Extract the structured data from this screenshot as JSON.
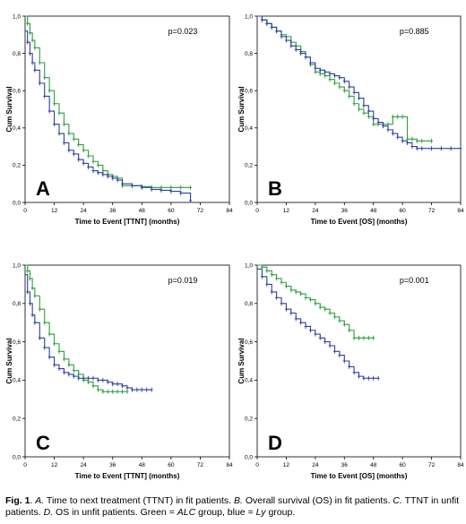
{
  "chart_data": [
    {
      "type": "line",
      "panel_letter": "A",
      "pvalue": "p=0.023",
      "xlabel": "Time to Event [TTNT] (months)",
      "ylabel": "Cum Survival",
      "xlim": [
        0,
        84
      ],
      "ylim": [
        0,
        1
      ],
      "xticks": [
        "0",
        "12",
        "24",
        "36",
        "48",
        "60",
        "72",
        "84"
      ],
      "yticks": [
        "0,0",
        "0,2",
        "0,4",
        "0,6",
        "0,8",
        "1,0"
      ],
      "series": [
        {
          "color": "#2e9e3f",
          "x": [
            0,
            1,
            2,
            3,
            4,
            6,
            8,
            10,
            12,
            14,
            16,
            18,
            20,
            22,
            24,
            26,
            28,
            30,
            32,
            34,
            36,
            38,
            40,
            44,
            48,
            52,
            56,
            60,
            64,
            68
          ],
          "y": [
            1.0,
            0.96,
            0.91,
            0.87,
            0.83,
            0.75,
            0.67,
            0.6,
            0.53,
            0.48,
            0.42,
            0.37,
            0.34,
            0.31,
            0.28,
            0.25,
            0.22,
            0.2,
            0.17,
            0.15,
            0.14,
            0.13,
            0.09,
            0.09,
            0.085,
            0.08,
            0.08,
            0.08,
            0.08,
            0.08
          ]
        },
        {
          "color": "#2f3f9e",
          "x": [
            0,
            1,
            2,
            3,
            4,
            6,
            8,
            10,
            12,
            14,
            16,
            18,
            20,
            22,
            24,
            26,
            28,
            30,
            32,
            34,
            36,
            38,
            40,
            44,
            48,
            52,
            56,
            60,
            64,
            68
          ],
          "y": [
            0.92,
            0.86,
            0.8,
            0.75,
            0.71,
            0.64,
            0.57,
            0.49,
            0.42,
            0.37,
            0.32,
            0.28,
            0.26,
            0.23,
            0.21,
            0.19,
            0.17,
            0.16,
            0.15,
            0.14,
            0.13,
            0.12,
            0.1,
            0.09,
            0.08,
            0.07,
            0.065,
            0.06,
            0.05,
            0.01
          ]
        }
      ]
    },
    {
      "type": "line",
      "panel_letter": "B",
      "pvalue": "p=0.885",
      "xlabel": "Time to Event [OS] (months)",
      "ylabel": "Cum Survival",
      "xlim": [
        0,
        84
      ],
      "ylim": [
        0,
        1
      ],
      "xticks": [
        "0",
        "12",
        "24",
        "36",
        "48",
        "60",
        "72",
        "84"
      ],
      "yticks": [
        "0,0",
        "0,2",
        "0,4",
        "0,6",
        "0,8",
        "1,0"
      ],
      "series": [
        {
          "color": "#2e9e3f",
          "x": [
            0,
            2,
            4,
            6,
            8,
            10,
            12,
            14,
            16,
            18,
            20,
            22,
            24,
            26,
            28,
            30,
            32,
            34,
            36,
            38,
            40,
            42,
            44,
            46,
            48,
            50,
            52,
            54,
            56,
            58,
            60,
            62,
            64,
            66,
            68,
            72
          ],
          "y": [
            1.0,
            0.98,
            0.96,
            0.94,
            0.92,
            0.9,
            0.89,
            0.86,
            0.84,
            0.81,
            0.78,
            0.74,
            0.7,
            0.69,
            0.68,
            0.66,
            0.64,
            0.62,
            0.6,
            0.57,
            0.53,
            0.5,
            0.48,
            0.46,
            0.42,
            0.42,
            0.42,
            0.42,
            0.46,
            0.46,
            0.46,
            0.34,
            0.34,
            0.33,
            0.33,
            0.33
          ]
        },
        {
          "color": "#2f3f9e",
          "x": [
            0,
            2,
            4,
            6,
            8,
            10,
            12,
            14,
            16,
            18,
            20,
            22,
            24,
            26,
            28,
            30,
            32,
            34,
            36,
            38,
            40,
            42,
            44,
            46,
            48,
            50,
            52,
            54,
            56,
            58,
            60,
            62,
            64,
            66,
            68,
            72,
            76,
            80,
            84
          ],
          "y": [
            1.0,
            0.98,
            0.96,
            0.94,
            0.92,
            0.89,
            0.87,
            0.84,
            0.82,
            0.8,
            0.78,
            0.75,
            0.72,
            0.71,
            0.7,
            0.69,
            0.68,
            0.67,
            0.65,
            0.62,
            0.59,
            0.56,
            0.52,
            0.49,
            0.45,
            0.43,
            0.41,
            0.39,
            0.37,
            0.35,
            0.33,
            0.32,
            0.3,
            0.29,
            0.29,
            0.29,
            0.29,
            0.29,
            0.29
          ]
        }
      ]
    },
    {
      "type": "line",
      "panel_letter": "C",
      "pvalue": "p=0.019",
      "xlabel": "Time to Event [TTNT] (months)",
      "ylabel": "Cum Survival",
      "xlim": [
        0,
        84
      ],
      "ylim": [
        0,
        1
      ],
      "xticks": [
        "0",
        "12",
        "24",
        "36",
        "48",
        "60",
        "72",
        "84"
      ],
      "yticks": [
        "0,0",
        "0,2",
        "0,4",
        "0,6",
        "0,8",
        "1,0"
      ],
      "series": [
        {
          "color": "#2e9e3f",
          "x": [
            0,
            1,
            2,
            3,
            4,
            6,
            8,
            10,
            12,
            14,
            16,
            18,
            20,
            22,
            24,
            26,
            28,
            30,
            32,
            34,
            36,
            38,
            40,
            42
          ],
          "y": [
            1.0,
            0.97,
            0.93,
            0.88,
            0.84,
            0.77,
            0.7,
            0.64,
            0.59,
            0.55,
            0.51,
            0.48,
            0.45,
            0.43,
            0.4,
            0.39,
            0.37,
            0.35,
            0.34,
            0.34,
            0.34,
            0.34,
            0.34,
            0.34
          ]
        },
        {
          "color": "#2f3f9e",
          "x": [
            0,
            1,
            2,
            3,
            4,
            6,
            8,
            10,
            12,
            14,
            16,
            18,
            20,
            22,
            24,
            26,
            28,
            30,
            32,
            34,
            36,
            38,
            40,
            42,
            44,
            46,
            48,
            50,
            52
          ],
          "y": [
            0.95,
            0.86,
            0.8,
            0.74,
            0.7,
            0.62,
            0.57,
            0.52,
            0.48,
            0.46,
            0.44,
            0.43,
            0.42,
            0.41,
            0.41,
            0.41,
            0.41,
            0.4,
            0.4,
            0.39,
            0.38,
            0.38,
            0.37,
            0.36,
            0.35,
            0.35,
            0.35,
            0.35,
            0.35
          ]
        }
      ]
    },
    {
      "type": "line",
      "panel_letter": "D",
      "pvalue": "p=0.001",
      "xlabel": "Time to Event [OS] (months)",
      "ylabel": "Cum Survival",
      "xlim": [
        0,
        84
      ],
      "ylim": [
        0,
        1
      ],
      "xticks": [
        "0",
        "12",
        "24",
        "36",
        "48",
        "60",
        "72",
        "84"
      ],
      "yticks": [
        "0,0",
        "0,2",
        "0,4",
        "0,6",
        "0,8",
        "1,0"
      ],
      "series": [
        {
          "color": "#2e9e3f",
          "x": [
            0,
            2,
            4,
            6,
            8,
            10,
            12,
            14,
            16,
            18,
            20,
            22,
            24,
            26,
            28,
            30,
            32,
            34,
            36,
            38,
            40,
            42,
            44,
            46,
            48
          ],
          "y": [
            1.0,
            0.99,
            0.97,
            0.95,
            0.93,
            0.91,
            0.89,
            0.87,
            0.86,
            0.85,
            0.83,
            0.82,
            0.8,
            0.78,
            0.77,
            0.75,
            0.73,
            0.71,
            0.69,
            0.66,
            0.62,
            0.62,
            0.62,
            0.62,
            0.62
          ]
        },
        {
          "color": "#2f3f9e",
          "x": [
            0,
            2,
            4,
            6,
            8,
            10,
            12,
            14,
            16,
            18,
            20,
            22,
            24,
            26,
            28,
            30,
            32,
            34,
            36,
            38,
            40,
            42,
            44,
            46,
            48,
            50
          ],
          "y": [
            0.98,
            0.94,
            0.9,
            0.86,
            0.83,
            0.8,
            0.77,
            0.75,
            0.72,
            0.7,
            0.68,
            0.66,
            0.64,
            0.62,
            0.6,
            0.58,
            0.55,
            0.53,
            0.5,
            0.47,
            0.44,
            0.42,
            0.41,
            0.41,
            0.41,
            0.41
          ]
        }
      ]
    }
  ],
  "caption": {
    "fig": "Fig. 1",
    "parts": [
      {
        "t": ". ",
        "s": "n"
      },
      {
        "t": "A.",
        "s": "i"
      },
      {
        "t": " Time to next treatment (TTNT) in fit patients. ",
        "s": "n"
      },
      {
        "t": "B.",
        "s": "i"
      },
      {
        "t": " Overall survival (OS) in fit patients. ",
        "s": "n"
      },
      {
        "t": "C.",
        "s": "i"
      },
      {
        "t": " TTNT in unfit patients. ",
        "s": "n"
      },
      {
        "t": "D.",
        "s": "i"
      },
      {
        "t": " OS in unfit patients. Green = ",
        "s": "n"
      },
      {
        "t": "ALC",
        "s": "i"
      },
      {
        "t": " group, blue = ",
        "s": "n"
      },
      {
        "t": "Ly",
        "s": "i"
      },
      {
        "t": " group.",
        "s": "n"
      }
    ]
  }
}
